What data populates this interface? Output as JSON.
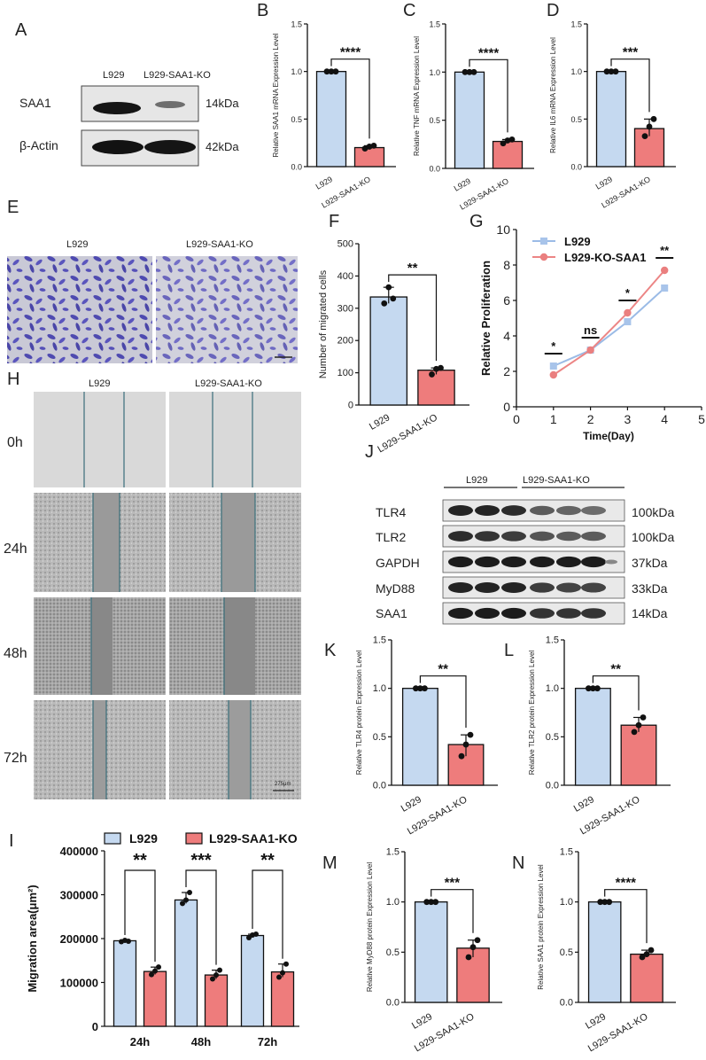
{
  "panels": {
    "A": "A",
    "B": "B",
    "C": "C",
    "D": "D",
    "E": "E",
    "F": "F",
    "G": "G",
    "H": "H",
    "I": "I",
    "J": "J",
    "K": "K",
    "L": "L",
    "M": "M",
    "N": "N"
  },
  "colors": {
    "blue": "#c5d9f0",
    "red": "#ee7c7c",
    "blueLine": "#9bbbe6",
    "redLine": "#ec8585",
    "blueMarker": "#a8c4ea",
    "redMarker": "#ea7f7f"
  },
  "western_A": {
    "lane_labels": [
      "L929",
      "L929-SAA1-KO"
    ],
    "rows": [
      {
        "protein": "SAA1",
        "kda": "14kDa"
      },
      {
        "protein": "β-Actin",
        "kda": "42kDa"
      }
    ]
  },
  "transwell_E": {
    "labels": [
      "L929",
      "L929-SAA1-KO"
    ]
  },
  "wound_H": {
    "col_labels": [
      "L929",
      "L929-SAA1-KO"
    ],
    "times": [
      "0h",
      "24h",
      "48h",
      "72h"
    ],
    "scale_bar": "275μm"
  },
  "western_J": {
    "group_labels": [
      "L929",
      "L929-SAA1-KO"
    ],
    "rows": [
      {
        "protein": "TLR4",
        "kda": "100kDa"
      },
      {
        "protein": "TLR2",
        "kda": "100kDa"
      },
      {
        "protein": "GAPDH",
        "kda": "37kDa"
      },
      {
        "protein": "MyD88",
        "kda": "33kDa"
      },
      {
        "protein": "SAA1",
        "kda": "14kDa"
      }
    ]
  },
  "chart_data": [
    {
      "id": "B",
      "type": "bar",
      "categories": [
        "L929",
        "L929-SAA1-KO"
      ],
      "values": [
        1.0,
        0.2
      ],
      "points": [
        [
          1.0,
          1.0,
          1.0
        ],
        [
          0.19,
          0.21,
          0.22
        ]
      ],
      "ylabel": "Relative SAA1 mRNA Expression Level",
      "ylim": [
        0,
        1.5
      ],
      "yticks": [
        "0.0",
        "0.5",
        "1.0",
        "1.5"
      ],
      "significance": "****"
    },
    {
      "id": "C",
      "type": "bar",
      "categories": [
        "L929",
        "L929-SAA1-KO"
      ],
      "values": [
        1.0,
        0.28
      ],
      "points": [
        [
          1.0,
          1.0,
          1.0
        ],
        [
          0.26,
          0.29,
          0.3
        ]
      ],
      "ylabel": "Relative TNF mRNA Expression Level",
      "ylim": [
        0,
        1.5
      ],
      "yticks": [
        "0.0",
        "0.5",
        "1.0",
        "1.5"
      ],
      "significance": "****"
    },
    {
      "id": "D",
      "type": "bar",
      "categories": [
        "L929",
        "L929-SAA1-KO"
      ],
      "values": [
        1.0,
        0.4
      ],
      "points": [
        [
          1.0,
          1.0,
          1.0
        ],
        [
          0.32,
          0.42,
          0.5
        ]
      ],
      "ylabel": "Relative IL6 mRNA Expression Level",
      "ylim": [
        0,
        1.5
      ],
      "yticks": [
        "0.0",
        "0.5",
        "1.0",
        "1.5"
      ],
      "significance": "***"
    },
    {
      "id": "F",
      "type": "bar",
      "categories": [
        "L929",
        "L929-SAA1-KO"
      ],
      "values": [
        335,
        108
      ],
      "points": [
        [
          315,
          365,
          330
        ],
        [
          95,
          112,
          115
        ]
      ],
      "ylabel": "Number of migrated cells",
      "ylim": [
        0,
        500
      ],
      "yticks": [
        "0",
        "100",
        "200",
        "300",
        "400",
        "500"
      ],
      "significance": "**"
    },
    {
      "id": "G",
      "type": "line",
      "xlabel": "Time(Day)",
      "ylabel": "Relative Proliferation",
      "xlim": [
        0,
        5
      ],
      "ylim": [
        0,
        10
      ],
      "xticks": [
        "0",
        "1",
        "2",
        "3",
        "4",
        "5"
      ],
      "yticks": [
        "0",
        "2",
        "4",
        "6",
        "8",
        "10"
      ],
      "series": [
        {
          "name": "L929",
          "x": [
            1,
            2,
            3,
            4
          ],
          "y": [
            2.3,
            3.2,
            4.8,
            6.7
          ]
        },
        {
          "name": "L929-KO-SAA1",
          "x": [
            1,
            2,
            3,
            4
          ],
          "y": [
            1.8,
            3.2,
            5.3,
            7.7
          ]
        }
      ],
      "significance": [
        "*",
        "ns",
        "*",
        "**"
      ]
    },
    {
      "id": "I",
      "type": "bar",
      "categories": [
        "24h",
        "48h",
        "72h"
      ],
      "ylabel": "Migration area(μm²)",
      "ylim": [
        0,
        400000
      ],
      "yticks": [
        "0",
        "100000",
        "200000",
        "300000",
        "400000"
      ],
      "series": [
        {
          "name": "L929",
          "values": [
            195000,
            288000,
            207000
          ]
        },
        {
          "name": "L929-SAA1-KO",
          "values": [
            125000,
            117000,
            124000
          ]
        }
      ],
      "significance": [
        "**",
        "***",
        "**"
      ]
    },
    {
      "id": "K",
      "type": "bar",
      "categories": [
        "L929",
        "L929-SAA1-KO"
      ],
      "values": [
        1.0,
        0.42
      ],
      "points": [
        [
          1.0,
          1.0,
          1.0
        ],
        [
          0.3,
          0.42,
          0.52
        ]
      ],
      "ylabel": "Relative TLR4 protein Expression Level",
      "ylim": [
        0,
        1.5
      ],
      "yticks": [
        "0.0",
        "0.5",
        "1.0",
        "1.5"
      ],
      "significance": "**"
    },
    {
      "id": "L",
      "type": "bar",
      "categories": [
        "L929",
        "L929-SAA1-KO"
      ],
      "values": [
        1.0,
        0.62
      ],
      "points": [
        [
          1.0,
          1.0,
          1.0
        ],
        [
          0.55,
          0.62,
          0.7
        ]
      ],
      "ylabel": "Relative TLR2 protein Expression Level",
      "ylim": [
        0,
        1.5
      ],
      "yticks": [
        "0.0",
        "0.5",
        "1.0",
        "1.5"
      ],
      "significance": "**"
    },
    {
      "id": "M",
      "type": "bar",
      "categories": [
        "L929",
        "L929-SAA1-KO"
      ],
      "values": [
        1.0,
        0.54
      ],
      "points": [
        [
          1.0,
          1.0,
          1.0
        ],
        [
          0.45,
          0.55,
          0.62
        ]
      ],
      "ylabel": "Relative MyD88 protein Expression Level",
      "ylim": [
        0,
        1.5
      ],
      "yticks": [
        "0.0",
        "0.5",
        "1.0",
        "1.5"
      ],
      "significance": "***"
    },
    {
      "id": "N",
      "type": "bar",
      "categories": [
        "L929",
        "L929-SAA1-KO"
      ],
      "values": [
        1.0,
        0.48
      ],
      "points": [
        [
          1.0,
          1.0,
          1.0
        ],
        [
          0.45,
          0.48,
          0.52
        ]
      ],
      "ylabel": "Relative SAA1 protein Expression Level",
      "ylim": [
        0,
        1.5
      ],
      "yticks": [
        "0.0",
        "0.5",
        "1.0",
        "1.5"
      ],
      "significance": "****"
    }
  ]
}
